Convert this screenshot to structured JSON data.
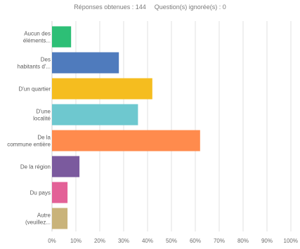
{
  "header": {
    "responses": "Réponses obtenues : 144",
    "skipped": "Question(s) ignorée(s) : 0"
  },
  "chart_data": {
    "type": "bar",
    "orientation": "horizontal",
    "categories": [
      [
        "Aucun des",
        "éléments..."
      ],
      [
        "Des",
        "habitants d'..."
      ],
      [
        "D'un quartier"
      ],
      [
        "D'une",
        "localité"
      ],
      [
        "De la",
        "commune entière"
      ],
      [
        "De la région"
      ],
      [
        "Du pays"
      ],
      [
        "Autre",
        "(veuillez..."
      ]
    ],
    "values": [
      8,
      28,
      42,
      36,
      62,
      11.5,
      6.5,
      6.5
    ],
    "colors": [
      "#2dbf76",
      "#4f7bbd",
      "#f5bd1f",
      "#6ec8cf",
      "#ff8b4d",
      "#7b5a9e",
      "#e36197",
      "#c9b37a"
    ],
    "xlim": [
      0,
      100
    ],
    "x_ticks": [
      "0%",
      "10%",
      "20%",
      "30%",
      "40%",
      "50%",
      "60%",
      "70%",
      "80%",
      "90%",
      "100%"
    ],
    "grid": true,
    "xlabel": "",
    "ylabel": ""
  }
}
